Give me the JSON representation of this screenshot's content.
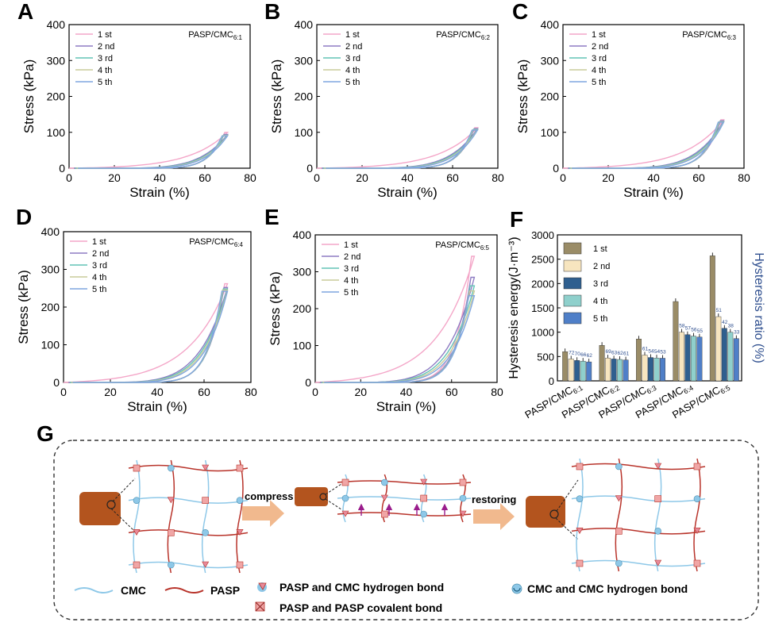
{
  "colors": {
    "cycle_colors": [
      "#f4a6c8",
      "#8e7cc3",
      "#62c3b6",
      "#c9cc9a",
      "#7fa6df"
    ],
    "bar_colors": [
      "#9a8c67",
      "#f7e5bf",
      "#2f5f8f",
      "#8fd0cc",
      "#4f7fc8"
    ],
    "network_cmc": "#8ec8e8",
    "network_pasp": "#b8332a",
    "block": "#b3541e",
    "arrow": "#f1b98e"
  },
  "chart_data": [
    {
      "panel": "A",
      "type": "line",
      "title": "PASP/CMC",
      "title_sub": "6:1",
      "xlabel": "Strain (%)",
      "ylabel": "Stress (kPa)",
      "xlim": [
        0,
        80
      ],
      "ylim": [
        0,
        400
      ],
      "xticks": [
        "0",
        "20",
        "40",
        "60",
        "80"
      ],
      "yticks": [
        "0",
        "100",
        "200",
        "300",
        "400"
      ],
      "legend": [
        "1 st",
        "2 nd",
        "3 rd",
        "4 th",
        "5 th"
      ],
      "legend_position": "top-left",
      "max_strain": 70,
      "series": [
        {
          "name": "1 st",
          "max_stress": 100
        },
        {
          "name": "2 nd",
          "max_stress": 94
        },
        {
          "name": "3 rd",
          "max_stress": 92
        },
        {
          "name": "4 th",
          "max_stress": 91
        },
        {
          "name": "5 th",
          "max_stress": 90
        }
      ]
    },
    {
      "panel": "B",
      "type": "line",
      "title": "PASP/CMC",
      "title_sub": "6:2",
      "xlabel": "Strain (%)",
      "ylabel": "Stress (kPa)",
      "xlim": [
        0,
        80
      ],
      "ylim": [
        0,
        400
      ],
      "xticks": [
        "0",
        "20",
        "40",
        "60",
        "80"
      ],
      "yticks": [
        "0",
        "100",
        "200",
        "300",
        "400"
      ],
      "legend": [
        "1 st",
        "2 nd",
        "3 rd",
        "4 th",
        "5 th"
      ],
      "legend_position": "top-left",
      "max_strain": 71,
      "series": [
        {
          "name": "1 st",
          "max_stress": 113
        },
        {
          "name": "2 nd",
          "max_stress": 110
        },
        {
          "name": "3 rd",
          "max_stress": 108
        },
        {
          "name": "4 th",
          "max_stress": 107
        },
        {
          "name": "5 th",
          "max_stress": 106
        }
      ]
    },
    {
      "panel": "C",
      "type": "line",
      "title": "PASP/CMC",
      "title_sub": "6:3",
      "xlabel": "Strain (%)",
      "ylabel": "Stress (kPa)",
      "xlim": [
        0,
        80
      ],
      "ylim": [
        0,
        400
      ],
      "xticks": [
        "0",
        "20",
        "40",
        "60",
        "80"
      ],
      "yticks": [
        "0",
        "100",
        "200",
        "300",
        "400"
      ],
      "legend": [
        "1 st",
        "2 nd",
        "3 rd",
        "4 th",
        "5 th"
      ],
      "legend_position": "top-left",
      "max_strain": 71,
      "series": [
        {
          "name": "1 st",
          "max_stress": 135
        },
        {
          "name": "2 nd",
          "max_stress": 132
        },
        {
          "name": "3 rd",
          "max_stress": 130
        },
        {
          "name": "4 th",
          "max_stress": 129
        },
        {
          "name": "5 th",
          "max_stress": 128
        }
      ]
    },
    {
      "panel": "D",
      "type": "line",
      "title": "PASP/CMC",
      "title_sub": "6:4",
      "xlabel": "Strain (%)",
      "ylabel": "Stress (kPa)",
      "xlim": [
        0,
        80
      ],
      "ylim": [
        0,
        400
      ],
      "xticks": [
        "0",
        "20",
        "40",
        "60",
        "80"
      ],
      "yticks": [
        "0",
        "100",
        "200",
        "300",
        "400"
      ],
      "legend": [
        "1 st",
        "2 nd",
        "3 rd",
        "4 th",
        "5 th"
      ],
      "legend_position": "top-left",
      "max_strain": 70,
      "series": [
        {
          "name": "1 st",
          "max_stress": 262
        },
        {
          "name": "2 nd",
          "max_stress": 252
        },
        {
          "name": "3 rd",
          "max_stress": 248
        },
        {
          "name": "4 th",
          "max_stress": 245
        },
        {
          "name": "5 th",
          "max_stress": 242
        }
      ]
    },
    {
      "panel": "E",
      "type": "line",
      "title": "PASP/CMC",
      "title_sub": "6:5",
      "xlabel": "Strain (%)",
      "ylabel": "Stress (kPa)",
      "xlim": [
        0,
        80
      ],
      "ylim": [
        0,
        400
      ],
      "xticks": [
        "0",
        "20",
        "40",
        "60",
        "80"
      ],
      "yticks": [
        "0",
        "100",
        "200",
        "300",
        "400"
      ],
      "legend": [
        "1 st",
        "2 nd",
        "3 rd",
        "4 th",
        "5 th"
      ],
      "legend_position": "top-left",
      "max_strain": 70,
      "series": [
        {
          "name": "1 st",
          "max_stress": 342
        },
        {
          "name": "2 nd",
          "max_stress": 285
        },
        {
          "name": "3 rd",
          "max_stress": 262
        },
        {
          "name": "4 th",
          "max_stress": 248
        },
        {
          "name": "5 th",
          "max_stress": 235
        }
      ]
    },
    {
      "panel": "F",
      "type": "bar",
      "ylabel": "Hysteresis energy(J·m⁻³)",
      "ylabel_right": "Hysteresis ratio (%)",
      "ylim": [
        0,
        3000
      ],
      "yticks": [
        "0",
        "500",
        "1000",
        "1500",
        "2000",
        "2500",
        "3000"
      ],
      "categories": [
        {
          "label": "PASP/CMC",
          "sub": "6:1"
        },
        {
          "label": "PASP/CMC",
          "sub": "6:2"
        },
        {
          "label": "PASP/CMC",
          "sub": "6:3"
        },
        {
          "label": "PASP/CMC",
          "sub": "6:4"
        },
        {
          "label": "PASP/CMC",
          "sub": "6:5"
        }
      ],
      "legend": [
        "1 st",
        "2 nd",
        "3 rd",
        "4 th",
        "5 th"
      ],
      "legend_position": "top-left",
      "series": [
        {
          "name": "1 st",
          "values": [
            600,
            730,
            860,
            1630,
            2570
          ]
        },
        {
          "name": "2 nd",
          "values": [
            450,
            470,
            530,
            1000,
            1320
          ]
        },
        {
          "name": "3 rd",
          "values": [
            420,
            450,
            480,
            950,
            1080
          ]
        },
        {
          "name": "4 th",
          "values": [
            405,
            440,
            470,
            920,
            1000
          ]
        },
        {
          "name": "5 th",
          "values": [
            390,
            430,
            465,
            900,
            870
          ]
        }
      ],
      "ratio_labels": [
        [
          "72",
          "70",
          "66",
          "62"
        ],
        [
          "69",
          "63",
          "62",
          "61"
        ],
        [
          "61",
          "54",
          "54",
          "53"
        ],
        [
          "58",
          "57",
          "56",
          "55"
        ],
        [
          "51",
          "42",
          "38",
          "33"
        ]
      ]
    }
  ],
  "panel_labels": [
    "A",
    "B",
    "C",
    "D",
    "E",
    "F",
    "G"
  ],
  "schematic": {
    "compress_label": "compress",
    "restoring_label": "restoring",
    "legend": {
      "cmc": "CMC",
      "pasp": "PASP",
      "pasp_cmc_hbond": "PASP and CMC hydrogen bond",
      "cmc_cmc_hbond": "CMC and CMC hydrogen bond",
      "pasp_pasp_covalent": "PASP and PASP covalent bond"
    }
  }
}
